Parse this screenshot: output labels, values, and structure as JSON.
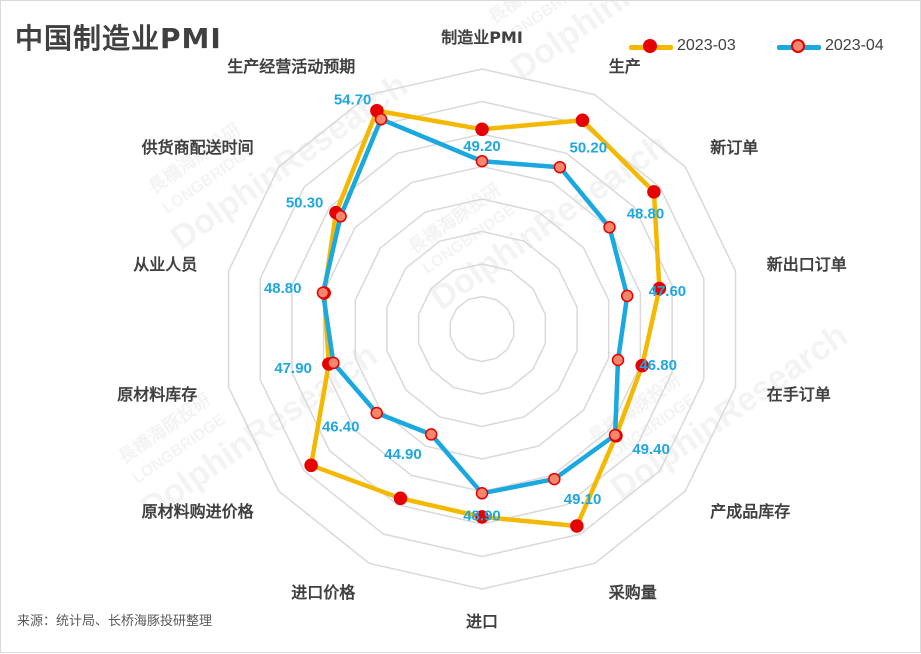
{
  "title": "中国制造业PMI",
  "source": "来源：统计局、长桥海豚投研整理",
  "watermark": {
    "brand": "DolphinResearch",
    "sub": "LONGBRIDGE",
    "cn": "長橋海豚投研"
  },
  "chart_data": {
    "type": "radar",
    "title": "中国制造业PMI",
    "axes": [
      "制造业PMI",
      "生产",
      "新订单",
      "新出口订单",
      "在手订单",
      "产成品库存",
      "采购量",
      "进口",
      "进口价格",
      "原材料购进价格",
      "原材料库存",
      "从业人员",
      "供货商配送时间",
      "生产经营活动预期"
    ],
    "rlim": [
      35,
      57
    ],
    "grid": true,
    "legend_position": "top-right",
    "series": [
      {
        "name": "2023-03",
        "color": "#f5b800",
        "marker": "#e60000",
        "marker_edge": "#e60000",
        "values": [
          51.9,
          54.6,
          53.6,
          50.4,
          48.9,
          49.5,
          53.5,
          50.9,
          50.9,
          53.5,
          48.3,
          48.7,
          50.8,
          55.5
        ]
      },
      {
        "name": "2023-04",
        "color": "#19a8e0",
        "marker": "#f4866b",
        "marker_edge": "#e60000",
        "values": [
          49.2,
          50.2,
          48.8,
          47.6,
          46.8,
          49.4,
          49.1,
          48.9,
          44.9,
          46.4,
          47.9,
          48.8,
          50.3,
          54.7
        ]
      }
    ],
    "data_labels": [
      "49.20",
      "50.20",
      "48.80",
      "47.60",
      "46.80",
      "49.40",
      "49.10",
      "48.90",
      "44.90",
      "46.40",
      "47.90",
      "48.80",
      "50.30",
      "54.70"
    ]
  }
}
